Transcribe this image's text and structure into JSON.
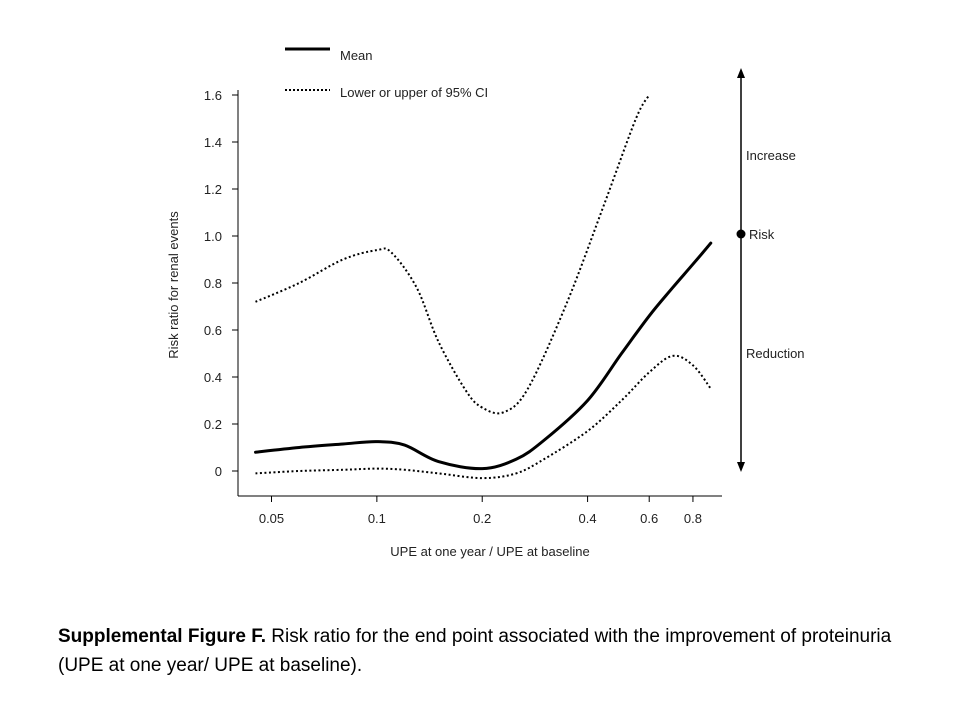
{
  "chart_data": {
    "type": "line",
    "ylabel": "Risk ratio for renal events",
    "xlabel": "UPE at one year / UPE at baseline",
    "x_scale": "log",
    "xlim": [
      0.04,
      0.92
    ],
    "ylim": [
      -0.1,
      1.6
    ],
    "y_ticks": [
      0,
      0.2,
      0.4,
      0.6,
      0.8,
      1.0,
      1.2,
      1.4,
      1.6
    ],
    "y_tick_labels": [
      "0",
      "0.2",
      "0.4",
      "0.6",
      "0.8",
      "1.0",
      "1.2",
      "1.4",
      "1.6"
    ],
    "x_ticks": [
      0.05,
      0.1,
      0.2,
      0.4,
      0.6,
      0.8
    ],
    "x_tick_labels": [
      "0.05",
      "0.1",
      "0.2",
      "0.4",
      "0.6",
      "0.8"
    ],
    "grid": false,
    "legend_position": "top",
    "series": [
      {
        "name": "Mean",
        "style": "solid",
        "x": [
          0.045,
          0.06,
          0.08,
          0.1,
          0.12,
          0.15,
          0.2,
          0.25,
          0.3,
          0.4,
          0.5,
          0.6,
          0.7,
          0.8,
          0.9
        ],
        "y": [
          0.08,
          0.1,
          0.115,
          0.125,
          0.11,
          0.04,
          0.01,
          0.05,
          0.13,
          0.3,
          0.5,
          0.66,
          0.78,
          0.88,
          0.97
        ]
      },
      {
        "name": "Lower or upper of 95% CI",
        "style": "dotted",
        "x": [
          0.045,
          0.06,
          0.08,
          0.1,
          0.11,
          0.13,
          0.15,
          0.18,
          0.2,
          0.23,
          0.27,
          0.35,
          0.45,
          0.55,
          0.6
        ],
        "y": [
          0.72,
          0.8,
          0.9,
          0.94,
          0.93,
          0.78,
          0.55,
          0.34,
          0.27,
          0.25,
          0.35,
          0.72,
          1.15,
          1.5,
          1.6
        ]
      },
      {
        "name": "Lower or upper of 95% CI",
        "style": "dotted",
        "x": [
          0.045,
          0.06,
          0.08,
          0.1,
          0.12,
          0.15,
          0.2,
          0.25,
          0.3,
          0.4,
          0.5,
          0.6,
          0.7,
          0.8,
          0.9
        ],
        "y": [
          -0.01,
          0.0,
          0.005,
          0.01,
          0.005,
          -0.01,
          -0.03,
          -0.01,
          0.05,
          0.17,
          0.3,
          0.42,
          0.49,
          0.45,
          0.35
        ]
      }
    ],
    "legend": {
      "mean": "Mean",
      "ci": "Lower or upper of 95% CI"
    },
    "annotations": {
      "increase": "Increase",
      "risk": "Risk",
      "reduction": "Reduction"
    }
  },
  "caption": {
    "bold": "Supplemental Figure F.",
    "text": " Risk ratio for the end point associated with the improvement of proteinuria (UPE at one year/ UPE at baseline)."
  }
}
